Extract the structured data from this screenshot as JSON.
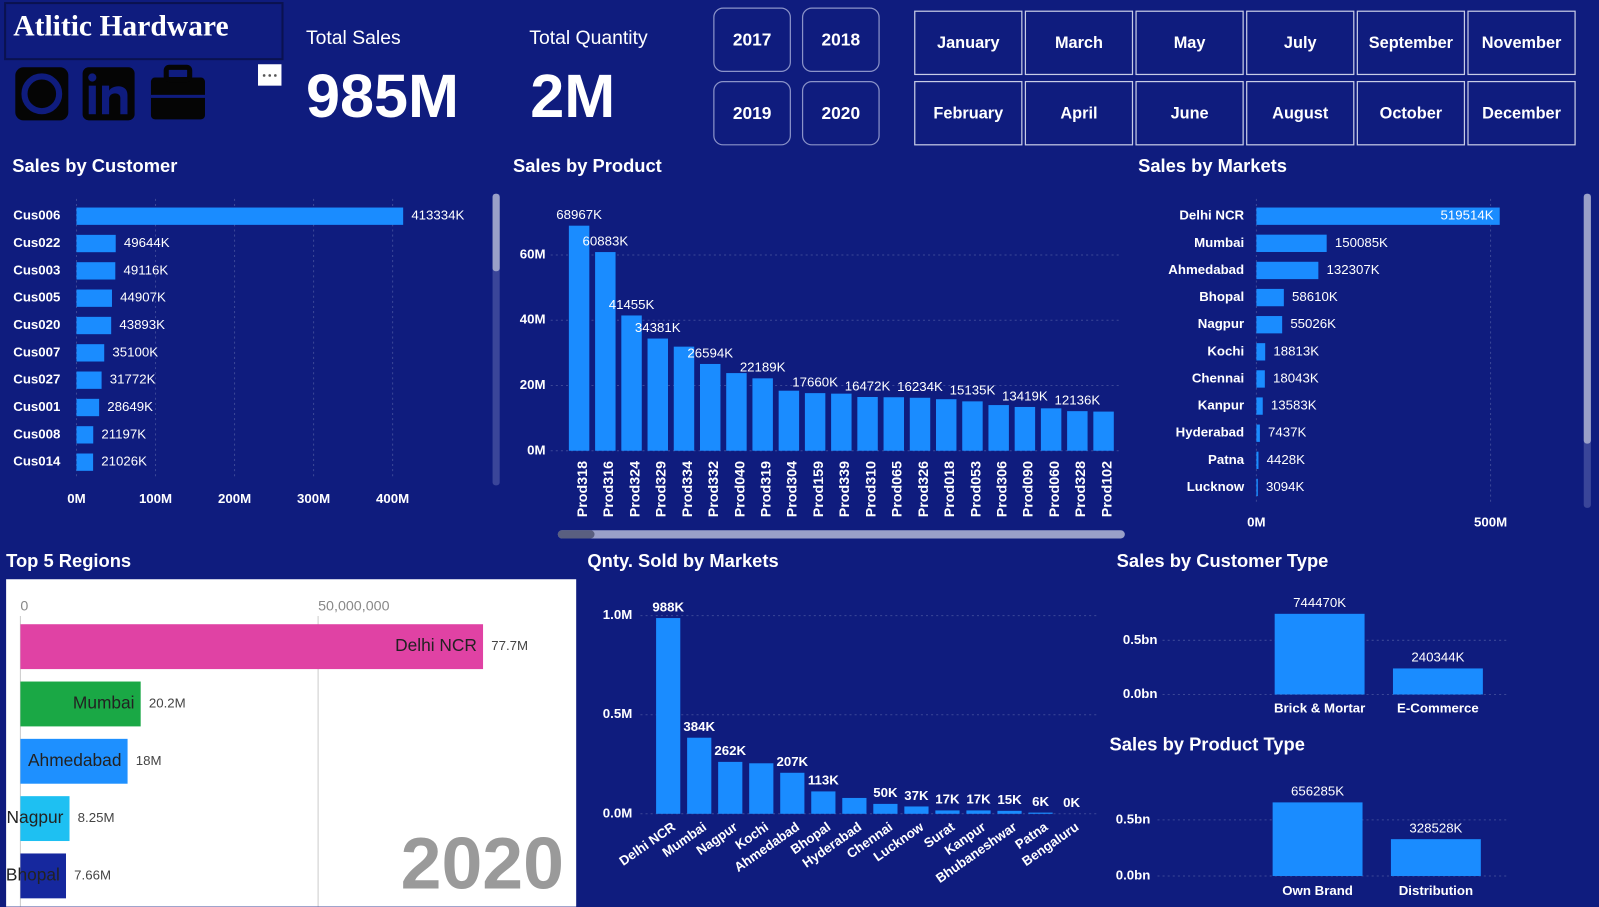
{
  "header": {
    "title": "Atlitic Hardware",
    "kpis": [
      {
        "label": "Total Sales",
        "value": "985M"
      },
      {
        "label": "Total Quantity",
        "value": "2M"
      }
    ]
  },
  "filters": {
    "years": [
      "2017",
      "2018",
      "2019",
      "2020"
    ],
    "months": [
      "January",
      "February",
      "March",
      "April",
      "May",
      "June",
      "July",
      "August",
      "September",
      "October",
      "November",
      "December"
    ]
  },
  "chart_data": [
    {
      "type": "barh",
      "title": "Sales by Customer",
      "categories": [
        "Cus006",
        "Cus022",
        "Cus003",
        "Cus005",
        "Cus020",
        "Cus007",
        "Cus027",
        "Cus001",
        "Cus008",
        "Cus014"
      ],
      "values": [
        413.334,
        49.644,
        49.116,
        44.907,
        43.893,
        35.1,
        31.772,
        28.649,
        21.197,
        21.026
      ],
      "value_labels": [
        "413334K",
        "49644K",
        "49116K",
        "44907K",
        "43893K",
        "35100K",
        "31772K",
        "28649K",
        "21197K",
        "21026K"
      ],
      "xlim": [
        0,
        440
      ],
      "xticks": [
        {
          "value": 0,
          "label": "0M"
        },
        {
          "value": 100,
          "label": "100M"
        },
        {
          "value": 200,
          "label": "200M"
        },
        {
          "value": 300,
          "label": "300M"
        },
        {
          "value": 400,
          "label": "400M"
        }
      ],
      "color": "#1a8cff",
      "grid": true
    },
    {
      "type": "bar",
      "title": "Sales by Product",
      "categories": [
        "Prod318",
        "Prod316",
        "Prod324",
        "Prod329",
        "Prod334",
        "Prod332",
        "Prod040",
        "Prod319",
        "Prod304",
        "Prod159",
        "Prod339",
        "Prod310",
        "Prod065",
        "Prod326",
        "Prod018",
        "Prod053",
        "Prod306",
        "Prod090",
        "Prod060",
        "Prod328",
        "Prod102"
      ],
      "values": [
        68.967,
        60.883,
        41.455,
        34.381,
        31.9,
        26.594,
        23.8,
        22.189,
        18.4,
        17.66,
        17.5,
        16.472,
        16.4,
        16.234,
        15.8,
        15.135,
        14,
        13.419,
        13,
        12.136,
        12
      ],
      "value_labels": [
        "68967K",
        "60883K",
        "41455K",
        "34381K",
        null,
        "26594K",
        null,
        "22189K",
        null,
        "17660K",
        null,
        "16472K",
        null,
        "16234K",
        null,
        "15135K",
        null,
        "13419K",
        null,
        "12136K",
        null
      ],
      "ylim": [
        0,
        75
      ],
      "yticks": [
        {
          "value": 0,
          "label": "0M"
        },
        {
          "value": 20,
          "label": "20M"
        },
        {
          "value": 40,
          "label": "40M"
        },
        {
          "value": 60,
          "label": "60M"
        }
      ],
      "color": "#1a8cff",
      "grid": true
    },
    {
      "type": "barh",
      "title": "Sales by Markets",
      "categories": [
        "Delhi NCR",
        "Mumbai",
        "Ahmedabad",
        "Bhopal",
        "Nagpur",
        "Kochi",
        "Chennai",
        "Kanpur",
        "Hyderabad",
        "Patna",
        "Lucknow"
      ],
      "values": [
        519.514,
        150.085,
        132.307,
        58.61,
        55.026,
        18.813,
        18.043,
        13.583,
        7.437,
        4.428,
        3.094
      ],
      "value_labels": [
        "519514K",
        "150085K",
        "132307K",
        "58610K",
        "55026K",
        "18813K",
        "18043K",
        "13583K",
        "7437K",
        "4428K",
        "3094K"
      ],
      "xlim": [
        0,
        540
      ],
      "xticks": [
        {
          "value": 0,
          "label": "0M"
        },
        {
          "value": 500,
          "label": "500M"
        }
      ],
      "color": "#1a8cff",
      "grid": true
    },
    {
      "type": "barh",
      "title": "Top 5 Regions",
      "categories": [
        "Delhi NCR",
        "Mumbai",
        "Ahmedabad",
        "Nagpur",
        "Bhopal"
      ],
      "values": [
        77700000,
        20200000,
        18000000,
        8250000,
        7660000
      ],
      "value_labels": [
        "77.7M",
        "20.2M",
        "18M",
        "8.25M",
        "7.66M"
      ],
      "xlim": [
        0,
        93000000
      ],
      "xticks": [
        0,
        {
          "value": 50000000,
          "label": "50,000,000"
        }
      ],
      "colors": [
        "#e042a4",
        "#1aa845",
        "#1e90ff",
        "#1ec0f2",
        "#16289e"
      ],
      "annotation": "2020",
      "grid": true
    },
    {
      "type": "bar",
      "title": "Qnty. Sold by Markets",
      "categories": [
        "Delhi NCR",
        "Mumbai",
        "Nagpur",
        "Kochi",
        "Ahmedabad",
        "Bhopal",
        "Hyderabad",
        "Chennai",
        "Lucknow",
        "Surat",
        "Kanpur",
        "Bhubaneshwar",
        "Patna",
        "Bengaluru"
      ],
      "values": [
        0.988,
        0.384,
        0.262,
        0.255,
        0.207,
        0.113,
        0.08,
        0.05,
        0.037,
        0.017,
        0.017,
        0.015,
        0.006,
        0
      ],
      "value_labels": [
        "988K",
        "384K",
        "262K",
        null,
        "207K",
        "113K",
        null,
        "50K",
        "37K",
        "17K",
        "17K",
        "15K",
        "6K",
        "0K"
      ],
      "ylim": [
        0,
        1.05
      ],
      "yticks": [
        {
          "value": 0,
          "label": "0.0M"
        },
        {
          "value": 0.5,
          "label": "0.5M"
        },
        {
          "value": 1,
          "label": "1.0M"
        }
      ],
      "color": "#1a8cff",
      "grid": true
    },
    {
      "type": "bar",
      "title": "Sales by Customer Type",
      "categories": [
        "Brick & Mortar",
        "E-Commerce"
      ],
      "values": [
        0.74447,
        0.240344
      ],
      "value_labels": [
        "744470K",
        "240344K"
      ],
      "ylim": [
        0,
        0.8
      ],
      "yticks": [
        {
          "value": 0,
          "label": "0.0bn"
        },
        {
          "value": 0.5,
          "label": "0.5bn"
        }
      ],
      "color": "#1a8cff",
      "grid": true
    },
    {
      "type": "bar",
      "title": "Sales by Product Type",
      "categories": [
        "Own Brand",
        "Distribution"
      ],
      "values": [
        0.656285,
        0.328528
      ],
      "value_labels": [
        "656285K",
        "328528K"
      ],
      "ylim": [
        0,
        0.75
      ],
      "yticks": [
        {
          "value": 0,
          "label": "0.0bn"
        },
        {
          "value": 0.5,
          "label": "0.5bn"
        }
      ],
      "color": "#1a8cff",
      "grid": true
    }
  ]
}
